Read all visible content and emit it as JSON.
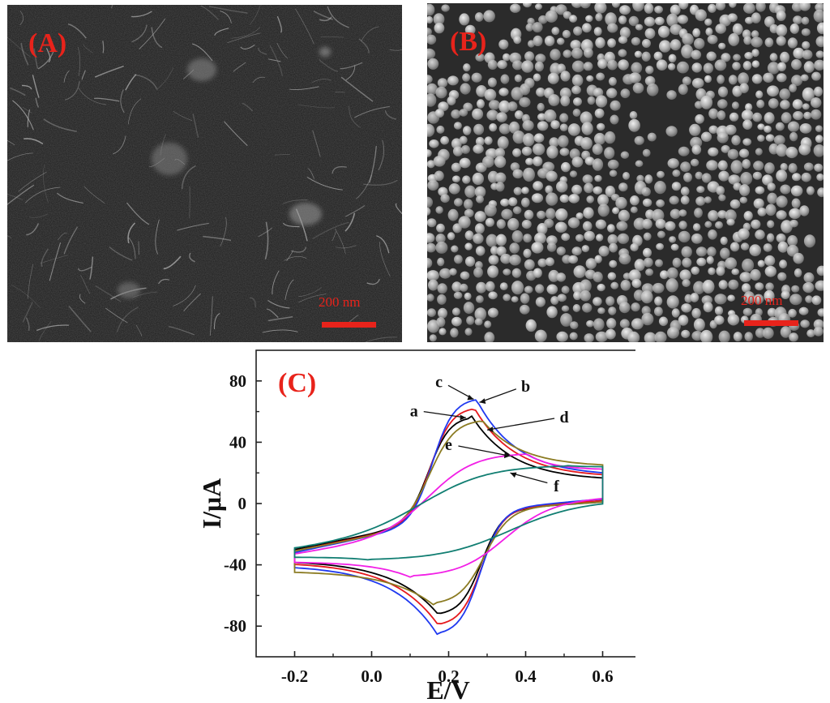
{
  "figure": {
    "panel_a": {
      "label": "(A)",
      "scale_text": "200 nm"
    },
    "panel_b": {
      "label": "(B)",
      "scale_text": "200 nm"
    },
    "panel_c": {
      "label": "(C)"
    }
  },
  "colors": {
    "panel_label": "#e8231b",
    "scale_bar": "#e8231b",
    "sem_background_a": "#1a1a1a",
    "sem_background_b": "#2a2a2a"
  },
  "chart_data": {
    "type": "line",
    "title": "",
    "xlabel": "E/V",
    "ylabel": "I/μA",
    "xlim": [
      -0.3,
      0.7
    ],
    "ylim": [
      -100,
      100
    ],
    "xticks": [
      -0.2,
      0.0,
      0.2,
      0.4,
      0.6
    ],
    "xtick_labels": [
      "-0.2",
      "0.0",
      "0.2",
      "0.4",
      "0.6"
    ],
    "yticks": [
      -80,
      -40,
      0,
      40,
      80
    ],
    "ytick_labels": [
      "-80",
      "-40",
      "0",
      "40",
      "80"
    ],
    "grid": false,
    "series": [
      {
        "name": "a",
        "color": "#000000",
        "params": {
          "ox_peak": [
            0.26,
            57
          ],
          "red_peak": [
            0.175,
            -73
          ],
          "i_low_top": -30,
          "i_low_bot": -37,
          "i_high_top": 15,
          "i_high_bot": 1,
          "sharp": 0.05
        }
      },
      {
        "name": "b",
        "color": "#e5181d",
        "params": {
          "ox_peak": [
            0.265,
            63
          ],
          "red_peak": [
            0.175,
            -80
          ],
          "i_low_top": -31,
          "i_low_bot": -38,
          "i_high_top": 17,
          "i_high_bot": 2,
          "sharp": 0.05
        }
      },
      {
        "name": "c",
        "color": "#1f39f0",
        "params": {
          "ox_peak": [
            0.27,
            69
          ],
          "red_peak": [
            0.172,
            -86
          ],
          "i_low_top": -32,
          "i_low_bot": -40,
          "i_high_top": 18,
          "i_high_bot": 3,
          "sharp": 0.05
        }
      },
      {
        "name": "d",
        "color": "#8b7b22",
        "params": {
          "ox_peak": [
            0.285,
            55
          ],
          "red_peak": [
            0.16,
            -66
          ],
          "i_low_top": -31,
          "i_low_bot": -44,
          "i_high_top": 24,
          "i_high_bot": 1,
          "sharp": 0.06
        }
      },
      {
        "name": "e",
        "color": "#f21fe6",
        "params": {
          "ox_peak": [
            0.4,
            33
          ],
          "red_peak": [
            0.1,
            -48
          ],
          "i_low_top": -33,
          "i_low_bot": -38,
          "i_high_top": 22,
          "i_high_bot": 4,
          "sharp": 0.11
        }
      },
      {
        "name": "f",
        "color": "#117e72",
        "params": {
          "ox_peak": [
            0.5,
            25
          ],
          "red_peak": [
            0.0,
            -37
          ],
          "i_low_top": -30,
          "i_low_bot": -35,
          "i_high_top": 24,
          "i_high_bot": 2,
          "sharp": 0.16
        }
      }
    ],
    "annotations": [
      {
        "text": "c",
        "series": "c",
        "at": [
          0.175,
          76
        ],
        "arrow_to": [
          0.265,
          68
        ]
      },
      {
        "text": "b",
        "series": "b",
        "at": [
          0.4,
          73
        ],
        "arrow_to": [
          0.28,
          66
        ]
      },
      {
        "text": "a",
        "series": "a",
        "at": [
          0.11,
          57
        ],
        "arrow_to": [
          0.245,
          56
        ]
      },
      {
        "text": "d",
        "series": "d",
        "at": [
          0.5,
          53
        ],
        "arrow_to": [
          0.3,
          48
        ]
      },
      {
        "text": "e",
        "series": "e",
        "at": [
          0.2,
          35
        ],
        "arrow_to": [
          0.36,
          31
        ]
      },
      {
        "text": "f",
        "series": "f",
        "at": [
          0.48,
          8
        ],
        "arrow_to": [
          0.36,
          20
        ]
      }
    ]
  }
}
